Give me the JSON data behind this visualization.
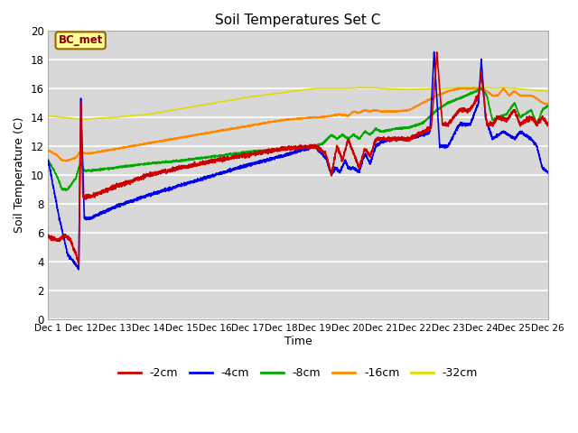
{
  "title": "Soil Temperatures Set C",
  "xlabel": "Time",
  "ylabel": "Soil Temperature (C)",
  "ylim": [
    0,
    20
  ],
  "xlim": [
    0,
    360
  ],
  "background_color": "#d8d8d8",
  "annotation_text": "BC_met",
  "annotation_bg": "#ffff99",
  "annotation_border": "#996600",
  "grid_color": "white",
  "series_colors": {
    "-2cm": "#cc0000",
    "-4cm": "#0000ee",
    "-8cm": "#00aa00",
    "-16cm": "#ff8800",
    "-32cm": "#dddd00"
  },
  "xtick_labels": [
    "Dec 1",
    "Dec 12",
    "Dec 13",
    "Dec 14",
    "Dec 15",
    "Dec 16",
    "Dec 17",
    "Dec 18",
    "Dec 19",
    "Dec 20",
    "Dec 21",
    "Dec 22",
    "Dec 23",
    "Dec 24",
    "Dec 25",
    "Dec 26"
  ],
  "xtick_positions": [
    0,
    24,
    48,
    72,
    96,
    120,
    144,
    168,
    192,
    216,
    240,
    264,
    288,
    312,
    336,
    360
  ],
  "ytick_labels": [
    "0",
    "2",
    "4",
    "6",
    "8",
    "10",
    "12",
    "14",
    "16",
    "18",
    "20"
  ],
  "ytick_positions": [
    0,
    2,
    4,
    6,
    8,
    10,
    12,
    14,
    16,
    18,
    20
  ]
}
